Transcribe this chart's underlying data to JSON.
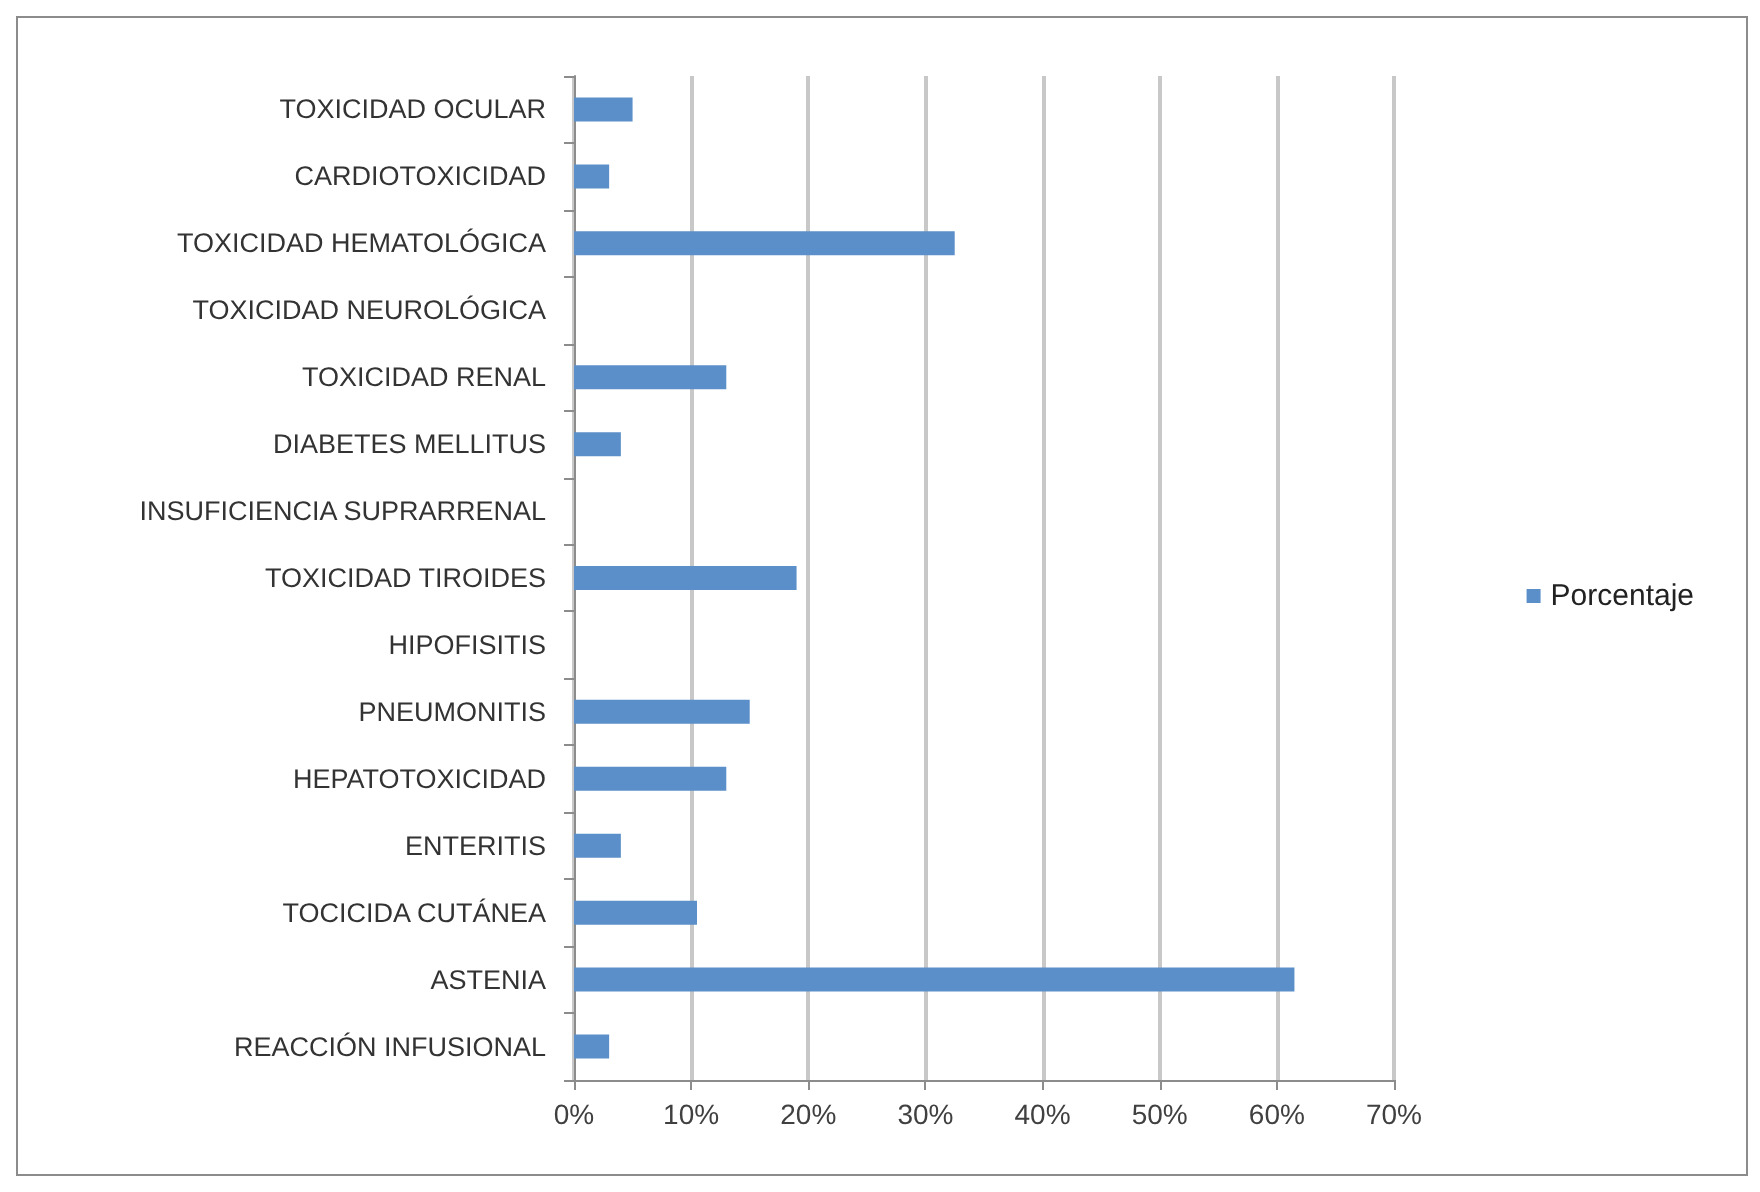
{
  "chart_data": {
    "type": "bar",
    "orientation": "horizontal",
    "categories": [
      "TOXICIDAD OCULAR",
      "CARDIOTOXICIDAD",
      "TOXICIDAD HEMATOLÓGICA",
      "TOXICIDAD NEUROLÓGICA",
      "TOXICIDAD RENAL",
      "DIABETES MELLITUS",
      "INSUFICIENCIA SUPRARRENAL",
      "TOXICIDAD TIROIDES",
      "HIPOFISITIS",
      "PNEUMONITIS",
      "HEPATOTOXICIDAD",
      "ENTERITIS",
      "TOCICIDA CUTÁNEA",
      "ASTENIA",
      "REACCIÓN INFUSIONAL"
    ],
    "series": [
      {
        "name": "Porcentaje",
        "color": "#5b8fc9",
        "values": [
          5,
          3,
          32.5,
          0,
          13,
          4,
          0,
          19,
          0,
          15,
          13,
          4,
          10.5,
          61.5,
          3
        ]
      }
    ],
    "xlim": [
      0,
      70
    ],
    "xticks": [
      {
        "value": 0,
        "label": "0%"
      },
      {
        "value": 10,
        "label": "10%"
      },
      {
        "value": 20,
        "label": "20%"
      },
      {
        "value": 30,
        "label": "30%"
      },
      {
        "value": 40,
        "label": "40%"
      },
      {
        "value": 50,
        "label": "50%"
      },
      {
        "value": 60,
        "label": "60%"
      },
      {
        "value": 70,
        "label": "70%"
      }
    ],
    "grid": "x",
    "legend": "right"
  }
}
